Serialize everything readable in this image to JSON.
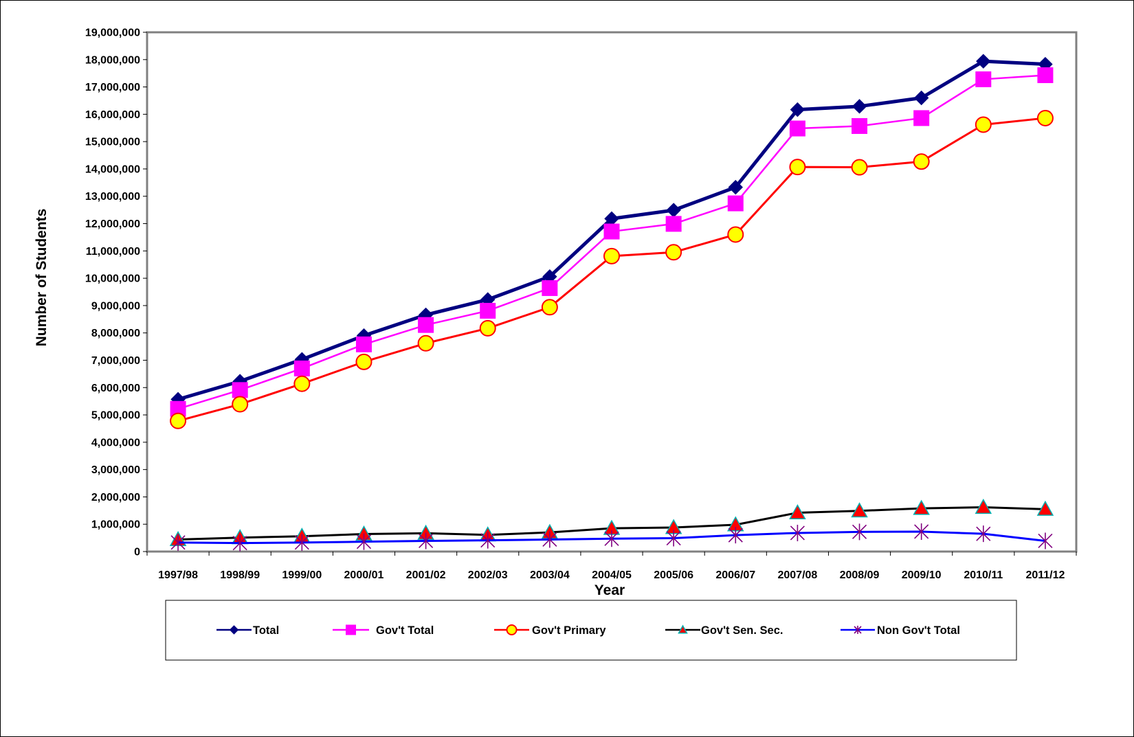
{
  "chart_data": {
    "type": "line",
    "title": "",
    "xlabel": "Year",
    "ylabel": "Number of Students",
    "ylim": [
      0,
      19000000
    ],
    "ytick_step": 1000000,
    "grid": false,
    "legend_position": "bottom",
    "categories": [
      "1997/98",
      "1998/99",
      "1999/00",
      "2000/01",
      "2001/02",
      "2002/03",
      "2003/04",
      "2004/05",
      "2005/06",
      "2006/07",
      "2007/08",
      "2008/09",
      "2009/10",
      "2010/11",
      "2011/12"
    ],
    "y_tick_labels": [
      "0",
      "1,000,000",
      "2,000,000",
      "3,000,000",
      "4,000,000",
      "5,000,000",
      "6,000,000",
      "7,000,000",
      "8,000,000",
      "9,000,000",
      "10,000,000",
      "11,000,000",
      "12,000,000",
      "13,000,000",
      "14,000,000",
      "15,000,000",
      "16,000,000",
      "17,000,000",
      "18,000,000",
      "19,000,000"
    ],
    "series": [
      {
        "name": "Total",
        "line_color": "#000080",
        "marker": "diamond",
        "marker_fill": "#000080",
        "marker_stroke": "#000080",
        "values": [
          5570000,
          6230000,
          7030000,
          7900000,
          8660000,
          9220000,
          10060000,
          12180000,
          12490000,
          13330000,
          16170000,
          16290000,
          16600000,
          17940000,
          17830000
        ]
      },
      {
        "name": "Gov't Total",
        "line_color": "#ff00ff",
        "marker": "square",
        "marker_fill": "#ff00ff",
        "marker_stroke": "#ff00ff",
        "values": [
          5220000,
          5910000,
          6700000,
          7580000,
          8290000,
          8810000,
          9640000,
          11710000,
          11990000,
          12740000,
          15480000,
          15570000,
          15860000,
          17280000,
          17430000
        ]
      },
      {
        "name": "Gov't Primary",
        "line_color": "#ff0000",
        "marker": "circle",
        "marker_fill": "#ffff00",
        "marker_stroke": "#ff0000",
        "values": [
          4780000,
          5390000,
          6140000,
          6940000,
          7620000,
          8170000,
          8940000,
          10810000,
          10950000,
          11600000,
          14070000,
          14060000,
          14270000,
          15620000,
          15860000
        ]
      },
      {
        "name": "Gov't Sen. Sec.",
        "line_color": "#000000",
        "marker": "triangle",
        "marker_fill": "#ff0000",
        "marker_stroke": "#00b0b0",
        "values": [
          440000,
          510000,
          560000,
          640000,
          670000,
          610000,
          700000,
          850000,
          880000,
          980000,
          1420000,
          1490000,
          1580000,
          1620000,
          1550000
        ]
      },
      {
        "name": "Non Gov't Total",
        "line_color": "#0000ff",
        "marker": "star",
        "marker_fill": "none",
        "marker_stroke": "#800080",
        "values": [
          330000,
          310000,
          330000,
          360000,
          390000,
          410000,
          440000,
          470000,
          490000,
          600000,
          680000,
          720000,
          730000,
          650000,
          390000
        ]
      }
    ]
  }
}
